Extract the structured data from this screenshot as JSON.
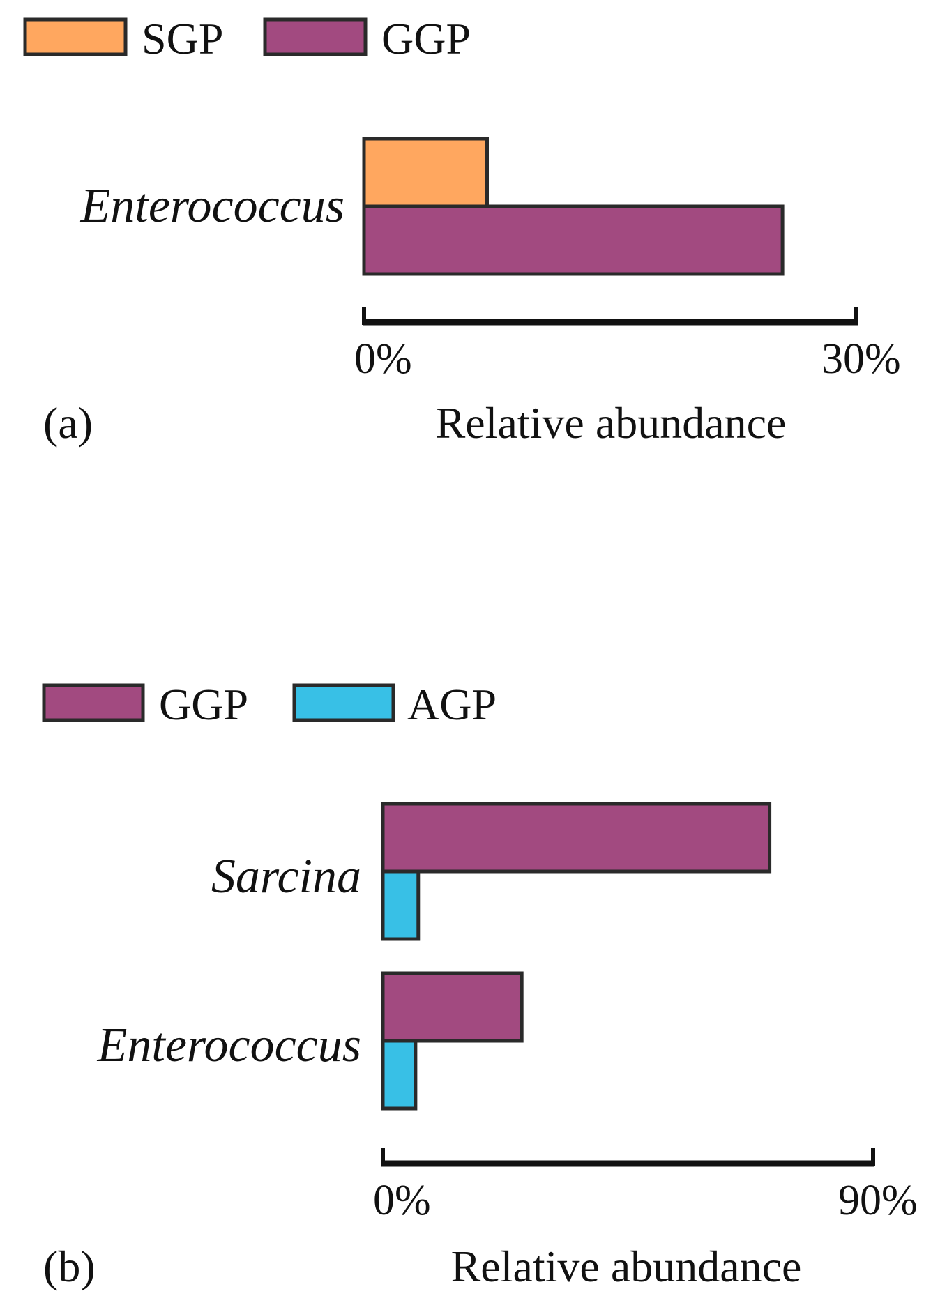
{
  "chart_data": [
    {
      "type": "bar",
      "orientation": "horizontal",
      "panel_label": "(a)",
      "categories": [
        "Enterococcus"
      ],
      "series": [
        {
          "name": "SGP",
          "color": "#FFA75F",
          "values": [
            7.5
          ]
        },
        {
          "name": "GGP",
          "color": "#A24A80",
          "values": [
            25.5
          ]
        }
      ],
      "xlim": [
        0,
        30
      ],
      "xtick_labels": [
        "0%",
        "30%"
      ],
      "xlabel": "Relative abundance",
      "legend": {
        "placement": "top-left",
        "entries": [
          "SGP",
          "GGP"
        ]
      },
      "grid": false
    },
    {
      "type": "bar",
      "orientation": "horizontal",
      "panel_label": "(b)",
      "categories": [
        "Sarcina",
        "Enterococcus"
      ],
      "series": [
        {
          "name": "GGP",
          "color": "#A24A80",
          "values": [
            71,
            25.5
          ]
        },
        {
          "name": "AGP",
          "color": "#38C0E6",
          "values": [
            6.5,
            6
          ]
        }
      ],
      "xlim": [
        0,
        90
      ],
      "xtick_labels": [
        "0%",
        "90%"
      ],
      "xlabel": "Relative abundance",
      "legend": {
        "placement": "top-left",
        "entries": [
          "GGP",
          "AGP"
        ]
      },
      "grid": false
    }
  ]
}
